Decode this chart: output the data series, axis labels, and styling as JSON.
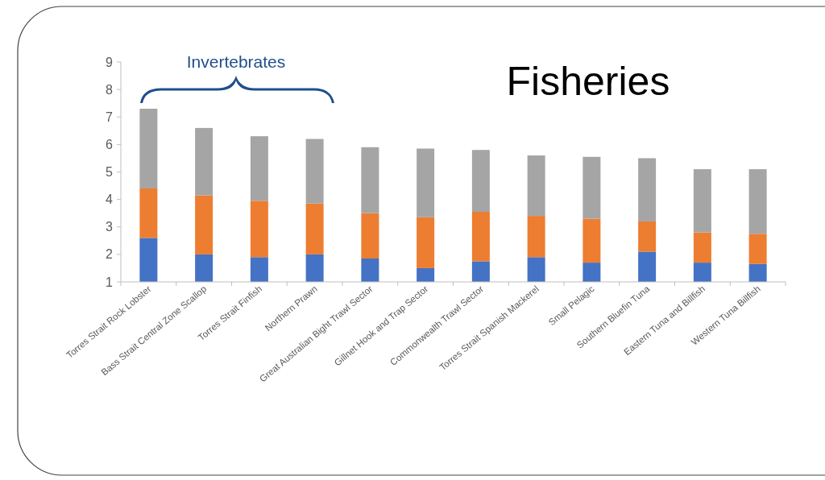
{
  "chart_data": {
    "type": "bar",
    "title": "Fisheries",
    "stacked": true,
    "categories": [
      "Torres Strait Rock Lobster",
      "Bass Strait Central Zone Scallop",
      "Torres Strait Finfish",
      "Northern Prawn",
      "Great Australian Bight Trawl Sector",
      "Gillnet Hook and Trap Sector",
      "Commonwealth Trawl Sector",
      "Torres Strait Spanish Mackerel",
      "Small Pelagic",
      "Southern Bluefin Tuna",
      "Eastern Tuna and Billfish",
      "Western Tuna Billfish"
    ],
    "series": [
      {
        "color": "#4472c4",
        "values": [
          2.6,
          2.0,
          1.9,
          2.0,
          1.85,
          1.5,
          1.75,
          1.9,
          1.7,
          2.1,
          1.7,
          1.65
        ]
      },
      {
        "color": "#ed7d31",
        "values": [
          1.8,
          2.15,
          2.05,
          1.85,
          1.65,
          1.85,
          1.8,
          1.5,
          1.6,
          1.1,
          1.1,
          1.1
        ]
      },
      {
        "color": "#a5a5a5",
        "values": [
          2.9,
          2.45,
          2.35,
          2.35,
          2.4,
          2.5,
          2.25,
          2.2,
          2.25,
          2.3,
          2.3,
          2.35
        ]
      }
    ],
    "ylim": [
      1,
      9
    ],
    "yticks": [
      1,
      2,
      3,
      4,
      5,
      6,
      7,
      8,
      9
    ],
    "grid": false,
    "annotations": [
      "Invertebrates"
    ]
  }
}
